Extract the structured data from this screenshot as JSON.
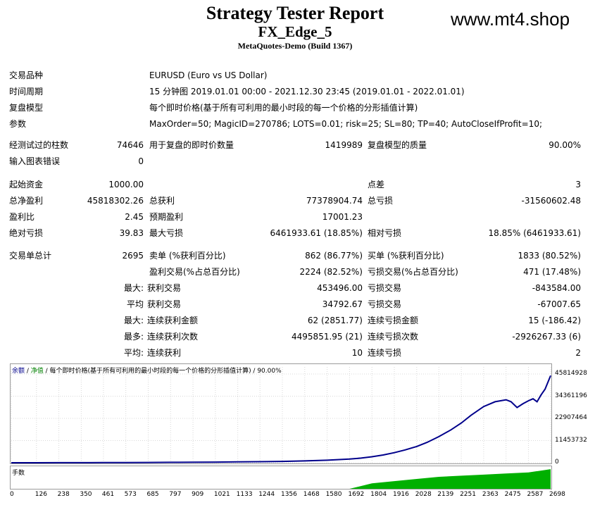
{
  "header": {
    "title": "Strategy Tester Report",
    "subtitle": "FX_Edge_5",
    "build": "MetaQuotes-Demo (Build 1367)",
    "watermark": "www.mt4.shop"
  },
  "info": {
    "symbol_label": "交易品种",
    "symbol_value": "EURUSD (Euro vs US Dollar)",
    "period_label": "时间周期",
    "period_value": "15 分钟图 2019.01.01 00:00 - 2021.12.30 23:45 (2019.01.01 - 2022.01.01)",
    "model_label": "复盘模型",
    "model_value": "每个即时价格(基于所有可利用的最小时段的每一个价格的分形插值计算)",
    "params_label": "参数",
    "params_value": "MaxOrder=50; MagicID=270786; LOTS=0.01; risk=25; SL=80; TP=40; AutoCloseIfProfit=10;"
  },
  "stats": {
    "bars_label": "经测试过的柱数",
    "bars_value": "74646",
    "ticks_label": "用于复盘的即时价数量",
    "ticks_value": "1419989",
    "quality_label": "复盘模型的质量",
    "quality_value": "90.00%",
    "errors_label": "输入图表错误",
    "errors_value": "0",
    "deposit_label": "起始资金",
    "deposit_value": "1000.00",
    "spread_label": "点差",
    "spread_value": "3",
    "net_label": "总净盈利",
    "net_value": "45818302.26",
    "gross_profit_label": "总获利",
    "gross_profit_value": "77378904.74",
    "gross_loss_label": "总亏损",
    "gross_loss_value": "-31560602.48",
    "pf_label": "盈利比",
    "pf_value": "2.45",
    "payoff_label": "预期盈利",
    "payoff_value": "17001.23",
    "abs_dd_label": "绝对亏损",
    "abs_dd_value": "39.83",
    "max_dd_label": "最大亏损",
    "max_dd_value": "6461933.61 (18.85%)",
    "rel_dd_label": "相对亏损",
    "rel_dd_value": "18.85% (6461933.61)",
    "trades_label": "交易单总计",
    "trades_value": "2695",
    "short_label": "卖单 (%获利百分比)",
    "short_value": "862 (86.77%)",
    "long_label": "买单 (%获利百分比)",
    "long_value": "1833 (80.52%)",
    "profit_trades_label": "盈利交易(%占总百分比)",
    "profit_trades_value": "2224 (82.52%)",
    "loss_trades_label": "亏损交易(%占总百分比)",
    "loss_trades_value": "471 (17.48%)",
    "largest_label": "最大:",
    "largest_profit_label": "获利交易",
    "largest_profit_value": "453496.00",
    "largest_loss_label": "亏损交易",
    "largest_loss_value": "-843584.00",
    "average_label": "平均",
    "average_profit_label": "获利交易",
    "average_profit_value": "34792.67",
    "average_loss_label": "亏损交易",
    "average_loss_value": "-67007.65",
    "max_consec_label": "最大:",
    "max_consec_wins_label": "连续获利金额",
    "max_consec_wins_value": "62 (2851.77)",
    "max_consec_losses_label": "连续亏损金额",
    "max_consec_losses_value": "15 (-186.42)",
    "maximal_label": "最多:",
    "maximal_profit_label": "连续获利次数",
    "maximal_profit_value": "4495851.95 (21)",
    "maximal_loss_label": "连续亏损次数",
    "maximal_loss_value": "-2926267.33 (6)",
    "avg_consec_label": "平均:",
    "avg_consec_wins_label": "连续获利",
    "avg_consec_wins_value": "10",
    "avg_consec_losses_label": "连续亏损",
    "avg_consec_losses_value": "2"
  },
  "chart": {
    "legend_balance": "余额",
    "legend_sep1": " / ",
    "legend_equity": "净值",
    "legend_rest": " / 每个即时价格(基于所有可利用的最小时段的每一个价格的分形插值计算) / 90.00%",
    "volume_label": "手数",
    "balance_color": "#00008b",
    "volume_color": "#00b000"
  },
  "chart_data": {
    "type": "line",
    "yticks": [
      "45814928",
      "34361196",
      "22907464",
      "11453732",
      "0"
    ],
    "xticks": [
      "0",
      "126",
      "238",
      "350",
      "461",
      "573",
      "685",
      "797",
      "909",
      "1021",
      "1133",
      "1244",
      "1356",
      "1468",
      "1580",
      "1692",
      "1804",
      "1916",
      "2028",
      "2139",
      "2251",
      "2363",
      "2475",
      "2587",
      "2698"
    ],
    "ylim": [
      0,
      45814928
    ],
    "xlim": [
      0,
      2698
    ],
    "series": [
      {
        "x": [
          0,
          126,
          238,
          350,
          461,
          573,
          685,
          797,
          909,
          1021,
          1133,
          1244,
          1356,
          1468,
          1580,
          1692,
          1750,
          1804,
          1860,
          1916,
          1970,
          2028,
          2080,
          2139,
          2200,
          2251,
          2300,
          2363,
          2420,
          2475,
          2500,
          2530,
          2560,
          2587,
          2610,
          2630,
          2650,
          2670,
          2698
        ],
        "y": [
          1000,
          15000,
          30000,
          50000,
          80000,
          110000,
          150000,
          200000,
          260000,
          330000,
          420000,
          540000,
          700000,
          950000,
          1300000,
          1900000,
          2400000,
          3100000,
          4000000,
          5200000,
          6600000,
          8400000,
          10500000,
          13500000,
          17000000,
          20500000,
          24500000,
          29000000,
          31500000,
          32500000,
          31500000,
          28500000,
          30500000,
          32000000,
          33000000,
          31500000,
          35000000,
          38000000,
          45000000
        ]
      }
    ],
    "volume": {
      "x": [
        0,
        1692,
        1804,
        1916,
        2028,
        2139,
        2251,
        2363,
        2475,
        2587,
        2698
      ],
      "y": [
        0,
        0,
        5,
        7,
        9,
        11,
        12,
        13,
        14,
        15,
        18
      ]
    }
  }
}
